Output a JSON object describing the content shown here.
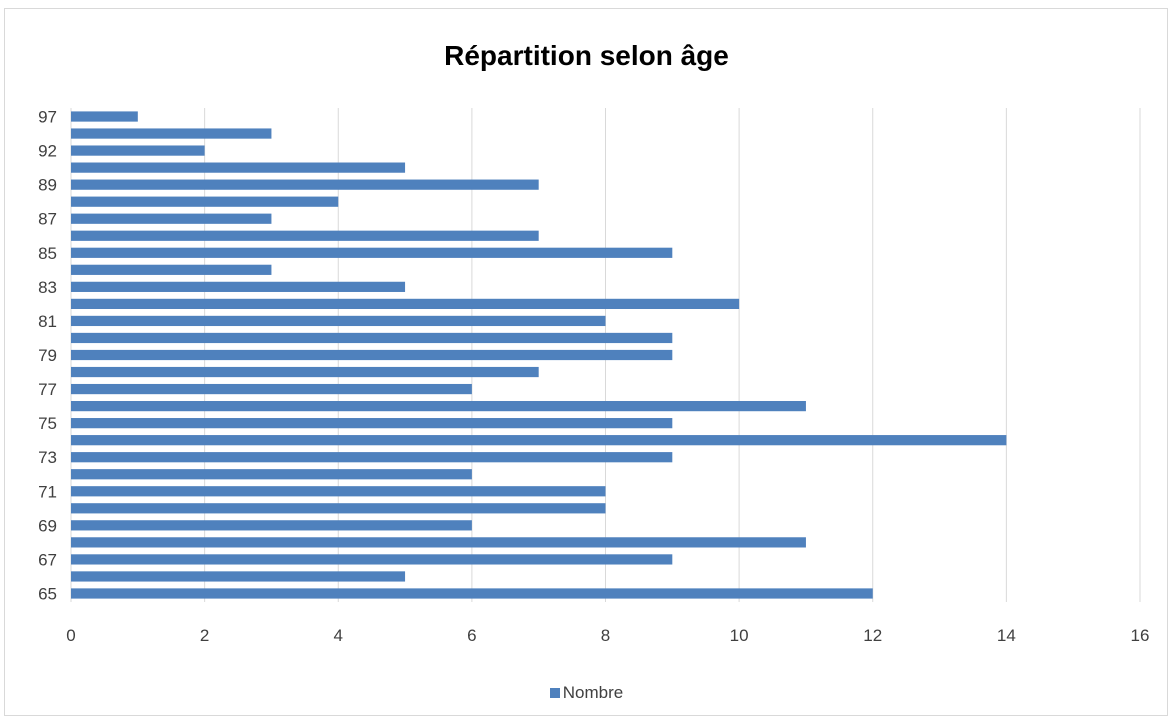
{
  "chart_data": {
    "type": "bar",
    "orientation": "horizontal",
    "title": "Répartition selon âge",
    "categories": [
      "65",
      "66",
      "67",
      "68",
      "69",
      "70",
      "71",
      "72",
      "73",
      "74",
      "75",
      "76",
      "77",
      "78",
      "79",
      "80",
      "81",
      "82",
      "83",
      "84",
      "85",
      "86",
      "87",
      "88",
      "89",
      "90",
      "92",
      "95",
      "97"
    ],
    "category_labels_shown": [
      "65",
      "67",
      "69",
      "71",
      "73",
      "75",
      "77",
      "79",
      "81",
      "83",
      "85",
      "87",
      "89",
      "92",
      "97"
    ],
    "series": [
      {
        "name": "Nombre",
        "color": "#4f81bd",
        "values": [
          12,
          5,
          9,
          11,
          6,
          8,
          8,
          6,
          9,
          14,
          9,
          11,
          6,
          7,
          9,
          9,
          8,
          10,
          5,
          3,
          9,
          7,
          3,
          4,
          7,
          5,
          2,
          3,
          1
        ]
      }
    ],
    "xlim": [
      0,
      16
    ],
    "xticks": [
      "0",
      "2",
      "4",
      "6",
      "8",
      "10",
      "12",
      "14",
      "16"
    ],
    "grid": "vertical",
    "legend": "bottom"
  }
}
